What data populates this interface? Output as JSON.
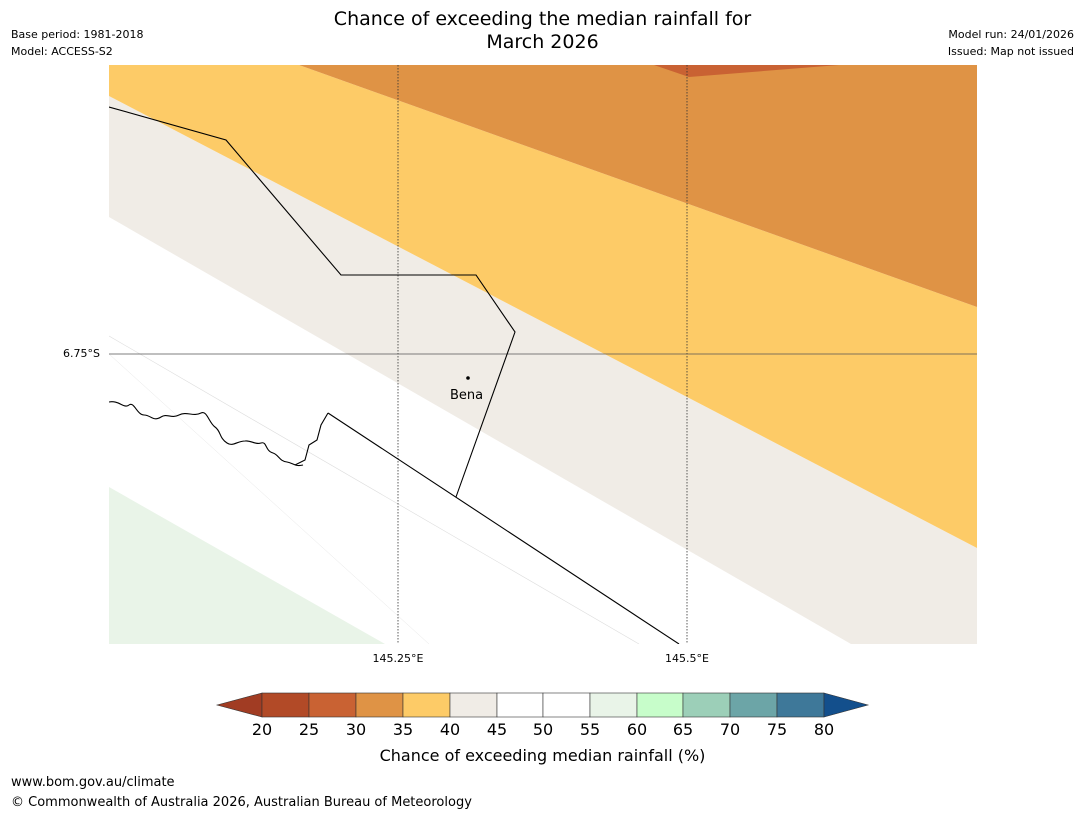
{
  "header": {
    "title_line1": "Chance of exceeding the median rainfall for",
    "title_line2": "March 2026",
    "base_period": "Base period: 1981-2018",
    "model": "Model: ACCESS-S2",
    "model_run": "Model run: 24/01/2026",
    "issued": "Issued: Map not issued"
  },
  "map": {
    "latitude_labels": [
      "6.75°S"
    ],
    "longitude_labels": [
      "145.25°E",
      "145.5°E"
    ],
    "place": "Bena",
    "colors": {
      "band_25_30": "#c96233",
      "band_30_35": "#df9345",
      "band_35_40": "#fdcb67",
      "band_40_45": "#f0ece6",
      "band_55_60": "#e9f4e8"
    }
  },
  "colorbar": {
    "ticks": [
      "20",
      "25",
      "30",
      "35",
      "40",
      "45",
      "50",
      "55",
      "60",
      "65",
      "70",
      "75",
      "80"
    ],
    "colors": [
      "#a13c23",
      "#b24a27",
      "#c96233",
      "#df9345",
      "#fdcb67",
      "#f0ece6",
      "#ffffff",
      "#ffffff",
      "#e9f4e8",
      "#c7fdca",
      "#9ccfb8",
      "#6ca5a7",
      "#3e7899",
      "#134f8c"
    ],
    "label": "Chance of exceeding median rainfall (%)"
  },
  "footer": {
    "url": "www.bom.gov.au/climate",
    "copyright": "© Commonwealth of Australia 2026, Australian Bureau of Meteorology"
  }
}
